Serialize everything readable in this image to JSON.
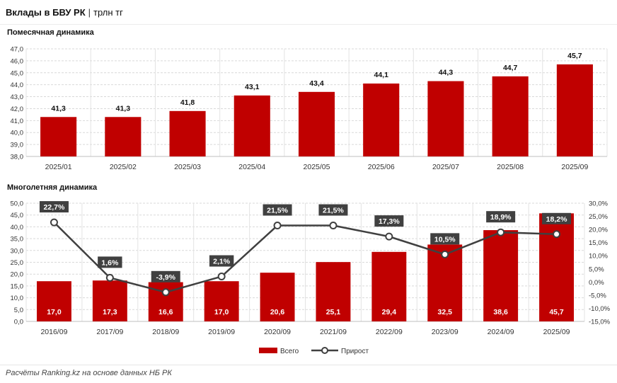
{
  "header": {
    "title_bold": "Вклады в БВУ РК",
    "title_sep": "|",
    "title_rest": "трлн тг"
  },
  "footer": {
    "source": "Расчёты Ranking.kz на основе данных НБ РК"
  },
  "colors": {
    "bar": "#c00000",
    "line": "#404040",
    "label_box": "#404040",
    "grid": "#d9d9d9"
  },
  "chart_data": [
    {
      "type": "bar",
      "title": "Помесячная динамика",
      "categories": [
        "2025/01",
        "2025/02",
        "2025/03",
        "2025/04",
        "2025/05",
        "2025/06",
        "2025/07",
        "2025/08",
        "2025/09"
      ],
      "values": [
        41.3,
        41.3,
        41.8,
        43.1,
        43.4,
        44.1,
        44.3,
        44.7,
        45.7
      ],
      "value_labels": [
        "41,3",
        "41,3",
        "41,8",
        "43,1",
        "43,4",
        "44,1",
        "44,3",
        "44,7",
        "45,7"
      ],
      "ylim": [
        38.0,
        47.0
      ],
      "yticks": [
        "38,0",
        "39,0",
        "40,0",
        "41,0",
        "42,0",
        "43,0",
        "44,0",
        "45,0",
        "46,0",
        "47,0"
      ],
      "grid": true
    },
    {
      "type": "bar",
      "title": "Многолетняя динамика",
      "categories": [
        "2016/09",
        "2017/09",
        "2018/09",
        "2019/09",
        "2020/09",
        "2021/09",
        "2022/09",
        "2023/09",
        "2024/09",
        "2025/09"
      ],
      "series": [
        {
          "name": "Всего",
          "type": "bar",
          "values": [
            17.0,
            17.3,
            16.6,
            17.0,
            20.6,
            25.1,
            29.4,
            32.5,
            38.6,
            45.7
          ],
          "value_labels": [
            "17,0",
            "17,3",
            "16,6",
            "17,0",
            "20,6",
            "25,1",
            "29,4",
            "32,5",
            "38,6",
            "45,7"
          ]
        },
        {
          "name": "Прирост",
          "type": "line",
          "axis": "right",
          "values": [
            22.7,
            1.6,
            -3.9,
            2.1,
            21.5,
            21.5,
            17.3,
            10.5,
            18.9,
            18.2
          ],
          "value_labels": [
            "22,7%",
            "1,6%",
            "-3,9%",
            "2,1%",
            "21,5%",
            "21,5%",
            "17,3%",
            "10,5%",
            "18,9%",
            "18,2%"
          ]
        }
      ],
      "ylim": [
        0,
        50
      ],
      "yticks": [
        "0,0",
        "5,0",
        "10,0",
        "15,0",
        "20,0",
        "25,0",
        "30,0",
        "35,0",
        "40,0",
        "45,0",
        "50,0"
      ],
      "y2lim": [
        -15,
        30
      ],
      "y2ticks": [
        "-15,0%",
        "-10,0%",
        "-5,0%",
        "0,0%",
        "5,0%",
        "10,0%",
        "15,0%",
        "20,0%",
        "25,0%",
        "30,0%"
      ],
      "legend": "bottom",
      "grid": true
    }
  ]
}
